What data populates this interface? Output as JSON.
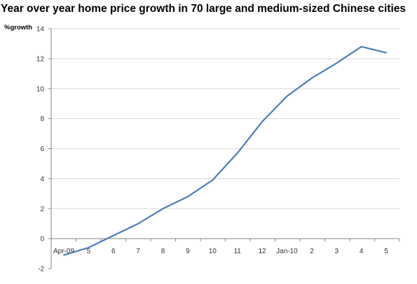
{
  "chart_data": {
    "type": "line",
    "title": "Year over year home price growth in 70 large and medium-sized Chinese cities",
    "ylabel": "%growth",
    "xlabel": "",
    "categories": [
      "Apr-09",
      "5",
      "6",
      "7",
      "8",
      "9",
      "10",
      "11",
      "12",
      "Jan-10",
      "2",
      "3",
      "4",
      "5"
    ],
    "series": [
      {
        "values": [
          -1.1,
          -0.6,
          0.2,
          1.0,
          2.0,
          2.8,
          3.9,
          5.7,
          7.8,
          9.5,
          10.7,
          11.7,
          12.8,
          12.4
        ]
      }
    ],
    "ylim": [
      -2,
      14
    ],
    "yticks": [
      -2,
      0,
      2,
      4,
      6,
      8,
      10,
      12,
      14
    ],
    "grid": true,
    "legend": "none",
    "colors": {
      "line": "#4a7ebb",
      "grid": "#d9d9d9",
      "axis": "#888888"
    }
  }
}
